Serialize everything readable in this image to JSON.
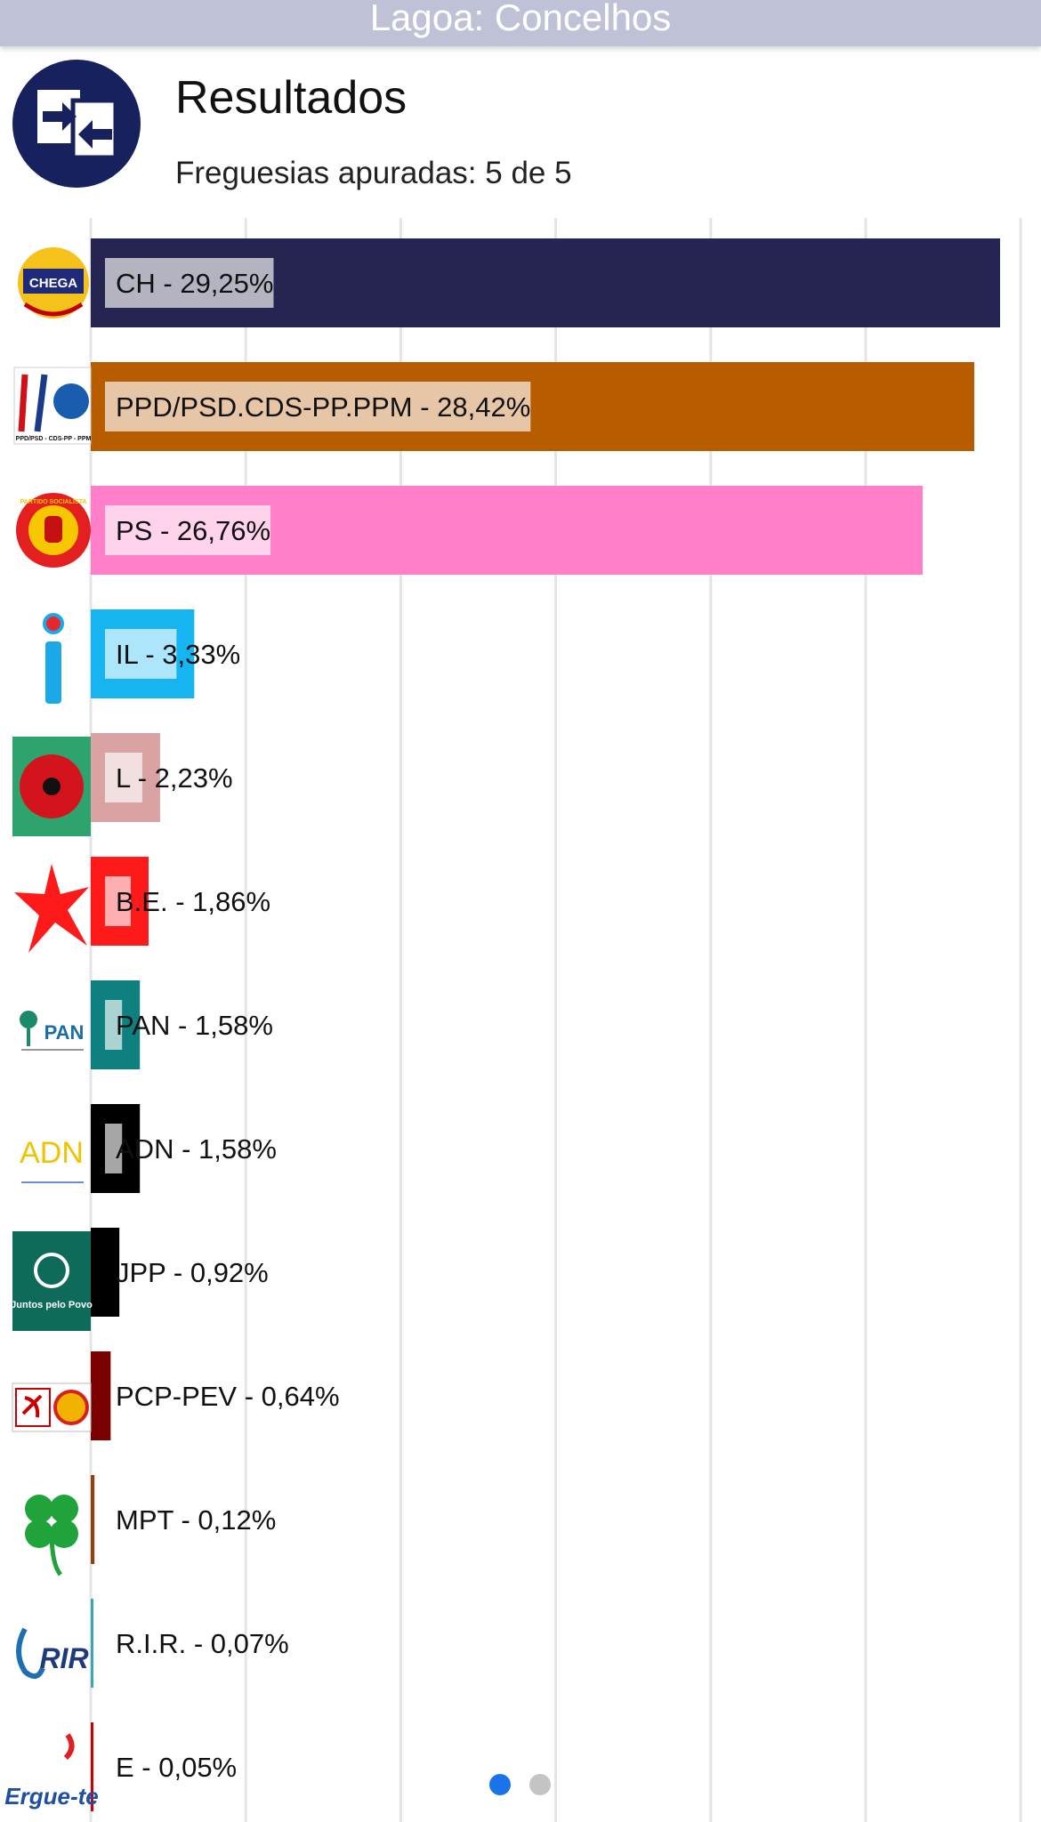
{
  "header": {
    "title": "Lagoa: Concelhos"
  },
  "results": {
    "title": "Resultados",
    "subtitle": "Freguesias apuradas: 5 de 5"
  },
  "pagination": {
    "pages": 2,
    "active": 0,
    "active_color": "#1a73e8",
    "inactive_color": "#c4c4c4"
  },
  "chart_data": {
    "type": "bar",
    "orientation": "horizontal",
    "xlim": [
      0,
      29.25
    ],
    "grid": true,
    "categories": [
      "CH",
      "PPD/PSD.CDS-PP.PPM",
      "PS",
      "IL",
      "L",
      "B.E.",
      "PAN",
      "ADN",
      "JPP",
      "PCP-PEV",
      "MPT",
      "R.I.R.",
      "E"
    ],
    "values": [
      29.25,
      28.42,
      26.76,
      3.33,
      2.23,
      1.86,
      1.58,
      1.58,
      0.92,
      0.64,
      0.12,
      0.07,
      0.05
    ],
    "labels": [
      "CH - 29,25%",
      "PPD/PSD.CDS-PP.PPM - 28,42%",
      "PS - 26,76%",
      "IL - 3,33%",
      "L - 2,23%",
      "B.E. - 1,86%",
      "PAN - 1,58%",
      "ADN - 1,58%",
      "JPP - 0,92%",
      "PCP-PEV - 0,64%",
      "MPT - 0,12%",
      "R.I.R. - 0,07%",
      "E - 0,05%"
    ],
    "colors": [
      "#262552",
      "#b85c00",
      "#ff80c8",
      "#16b4f0",
      "#d9a3a3",
      "#ff1a1a",
      "#0f8080",
      "#000000",
      "#000000",
      "#7b0000",
      "#8b4513",
      "#3aa7b8",
      "#cc0000"
    ],
    "logo_icons": [
      "chega-logo",
      "psd-cds-ppm-logo",
      "ps-logo",
      "il-logo",
      "livre-logo",
      "be-logo",
      "pan-logo",
      "adn-logo",
      "jpp-logo",
      "pcp-pev-logo",
      "mpt-logo",
      "rir-logo",
      "e-logo"
    ],
    "logo_texts": [
      "CHEGA",
      "PPD/PSD - CDS-PP - PPM",
      "PARTIDO SOCIALISTA",
      "",
      "",
      "",
      "PAN",
      "ADN",
      "Juntos pelo Povo",
      "",
      "",
      "RIR",
      "Ergue-te"
    ]
  }
}
